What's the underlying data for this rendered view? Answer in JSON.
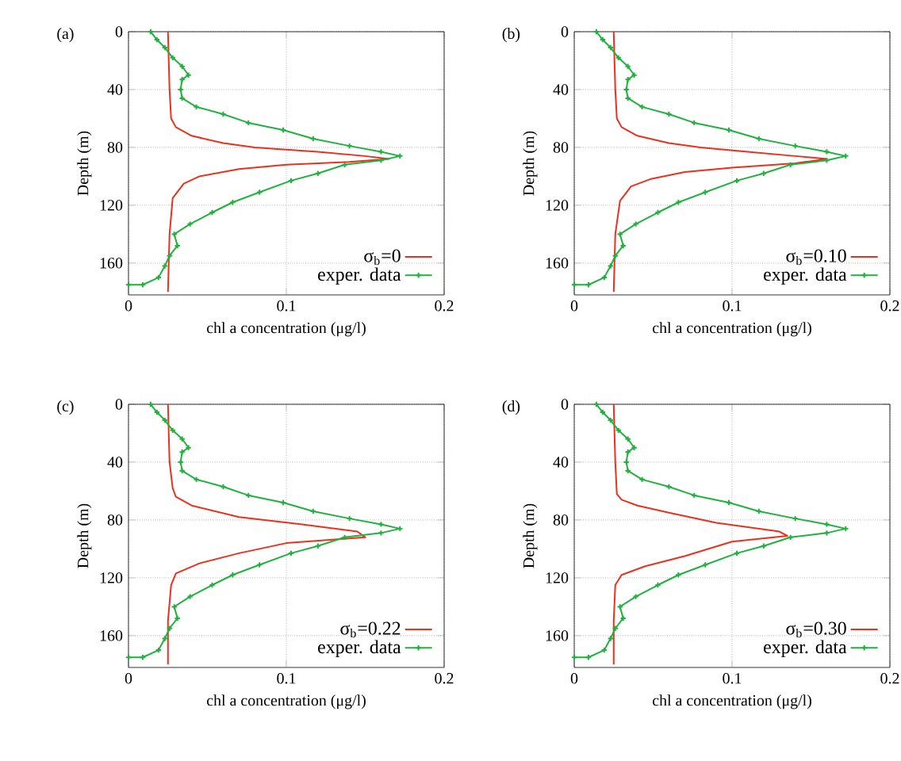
{
  "chart_data": [
    {
      "type": "line",
      "title": "(a)",
      "xlabel": "chl a concentration (μg/l)",
      "ylabel": "Depth (m)",
      "xlim": [
        0,
        0.2
      ],
      "xticks": [
        0,
        0.1,
        0.2
      ],
      "ylim": [
        182,
        0
      ],
      "yticks": [
        0,
        40,
        80,
        120,
        160
      ],
      "grid": true,
      "legend": "bottom right",
      "series": [
        {
          "name": "σ$_{b}$=0",
          "color": "#e8321e",
          "marker": "none",
          "x": [
            0.025,
            0.026,
            0.027,
            0.03,
            0.04,
            0.06,
            0.08,
            0.12,
            0.15,
            0.165,
            0.14,
            0.1,
            0.07,
            0.045,
            0.035,
            0.028,
            0.026,
            0.025
          ],
          "values": [
            0,
            40,
            60,
            66,
            72,
            77,
            80,
            83,
            86,
            88,
            90,
            92,
            95,
            100,
            105,
            115,
            140,
            180
          ]
        },
        {
          "name": "exper. data",
          "color": "#22b040",
          "marker": "cross",
          "x": [
            0.014,
            0.018,
            0.023,
            0.028,
            0.034,
            0.038,
            0.034,
            0.033,
            0.034,
            0.043,
            0.06,
            0.076,
            0.098,
            0.117,
            0.14,
            0.16,
            0.172,
            0.16,
            0.137,
            0.12,
            0.103,
            0.083,
            0.066,
            0.053,
            0.039,
            0.029,
            0.031,
            0.026,
            0.023,
            0.019,
            0.009,
            0
          ],
          "values": [
            0,
            5.5,
            11,
            18,
            24,
            30,
            33,
            40,
            46,
            52,
            57,
            63,
            68,
            74,
            79,
            83,
            86,
            89,
            92,
            98,
            103,
            111,
            118,
            125,
            133,
            140,
            148,
            155,
            162,
            170,
            175,
            175
          ]
        }
      ]
    },
    {
      "type": "line",
      "title": "(b)",
      "xlabel": "chl a concentration (μg/l)",
      "ylabel": "Depth (m)",
      "xlim": [
        0,
        0.2
      ],
      "xticks": [
        0,
        0.1,
        0.2
      ],
      "ylim": [
        182,
        0
      ],
      "yticks": [
        0,
        40,
        80,
        120,
        160
      ],
      "grid": true,
      "legend": "bottom right",
      "series": [
        {
          "name": "σ$_{b}$=0.10",
          "color": "#e8321e",
          "marker": "none",
          "x": [
            0.025,
            0.026,
            0.027,
            0.03,
            0.04,
            0.06,
            0.08,
            0.11,
            0.14,
            0.16,
            0.14,
            0.1,
            0.07,
            0.048,
            0.036,
            0.029,
            0.026,
            0.025
          ],
          "values": [
            0,
            40,
            60,
            66,
            72,
            77,
            80,
            83,
            86,
            88,
            91,
            94,
            97,
            102,
            107,
            117,
            140,
            180
          ]
        },
        {
          "name": "exper. data",
          "color": "#22b040",
          "marker": "cross",
          "x": [
            0.014,
            0.018,
            0.023,
            0.028,
            0.034,
            0.038,
            0.034,
            0.033,
            0.034,
            0.043,
            0.06,
            0.076,
            0.098,
            0.117,
            0.14,
            0.16,
            0.172,
            0.16,
            0.137,
            0.12,
            0.103,
            0.083,
            0.066,
            0.053,
            0.039,
            0.029,
            0.031,
            0.026,
            0.023,
            0.019,
            0.009,
            0
          ],
          "values": [
            0,
            5.5,
            11,
            18,
            24,
            30,
            33,
            40,
            46,
            52,
            57,
            63,
            68,
            74,
            79,
            83,
            86,
            89,
            92,
            98,
            103,
            111,
            118,
            125,
            133,
            140,
            148,
            155,
            162,
            170,
            175,
            175
          ]
        }
      ]
    },
    {
      "type": "line",
      "title": "(c)",
      "xlabel": "chl a concentration (μg/l)",
      "ylabel": "Depth (m)",
      "xlim": [
        0,
        0.2
      ],
      "xticks": [
        0,
        0.1,
        0.2
      ],
      "ylim": [
        182,
        0
      ],
      "yticks": [
        0,
        40,
        80,
        120,
        160
      ],
      "grid": true,
      "legend": "bottom right",
      "series": [
        {
          "name": "σ$_{b}$=0.22",
          "color": "#e8321e",
          "marker": "none",
          "x": [
            0.025,
            0.026,
            0.028,
            0.03,
            0.04,
            0.07,
            0.11,
            0.145,
            0.15,
            0.1,
            0.07,
            0.045,
            0.03,
            0.027,
            0.025,
            0.025
          ],
          "values": [
            0,
            40,
            58,
            64,
            70,
            78,
            83,
            88,
            92,
            96,
            103,
            110,
            117,
            125,
            150,
            180
          ]
        },
        {
          "name": "exper. data",
          "color": "#22b040",
          "marker": "cross",
          "x": [
            0.014,
            0.018,
            0.023,
            0.028,
            0.034,
            0.038,
            0.034,
            0.033,
            0.034,
            0.043,
            0.06,
            0.076,
            0.098,
            0.117,
            0.14,
            0.16,
            0.172,
            0.16,
            0.137,
            0.12,
            0.103,
            0.083,
            0.066,
            0.053,
            0.039,
            0.029,
            0.031,
            0.026,
            0.023,
            0.019,
            0.009,
            0
          ],
          "values": [
            0,
            5.5,
            11,
            18,
            24,
            30,
            33,
            40,
            46,
            52,
            57,
            63,
            68,
            74,
            79,
            83,
            86,
            89,
            92,
            98,
            103,
            111,
            118,
            125,
            133,
            140,
            148,
            155,
            162,
            170,
            175,
            175
          ]
        }
      ]
    },
    {
      "type": "line",
      "title": "(d)",
      "xlabel": "chl a concentration (μg/l)",
      "ylabel": "Depth (m)",
      "xlim": [
        0,
        0.2
      ],
      "xticks": [
        0,
        0.1,
        0.2
      ],
      "ylim": [
        182,
        0
      ],
      "yticks": [
        0,
        40,
        80,
        120,
        160
      ],
      "grid": true,
      "legend": "bottom right",
      "series": [
        {
          "name": "σ$_{b}$=0.30",
          "color": "#e8321e",
          "marker": "none",
          "x": [
            0.025,
            0.026,
            0.027,
            0.03,
            0.04,
            0.06,
            0.09,
            0.13,
            0.135,
            0.1,
            0.07,
            0.045,
            0.03,
            0.026,
            0.025,
            0.025
          ],
          "values": [
            0,
            40,
            62,
            66,
            70,
            75,
            82,
            88,
            91,
            95,
            105,
            112,
            118,
            125,
            150,
            180
          ]
        },
        {
          "name": "exper. data",
          "color": "#22b040",
          "marker": "cross",
          "x": [
            0.014,
            0.018,
            0.023,
            0.028,
            0.034,
            0.038,
            0.034,
            0.033,
            0.034,
            0.043,
            0.06,
            0.076,
            0.098,
            0.117,
            0.14,
            0.16,
            0.172,
            0.16,
            0.137,
            0.12,
            0.103,
            0.083,
            0.066,
            0.053,
            0.039,
            0.029,
            0.031,
            0.026,
            0.023,
            0.019,
            0.009,
            0
          ],
          "values": [
            0,
            5.5,
            11,
            18,
            24,
            30,
            33,
            40,
            46,
            52,
            57,
            63,
            68,
            74,
            79,
            83,
            86,
            89,
            92,
            98,
            103,
            111,
            118,
            125,
            133,
            140,
            148,
            155,
            162,
            170,
            175,
            175
          ]
        }
      ]
    }
  ]
}
